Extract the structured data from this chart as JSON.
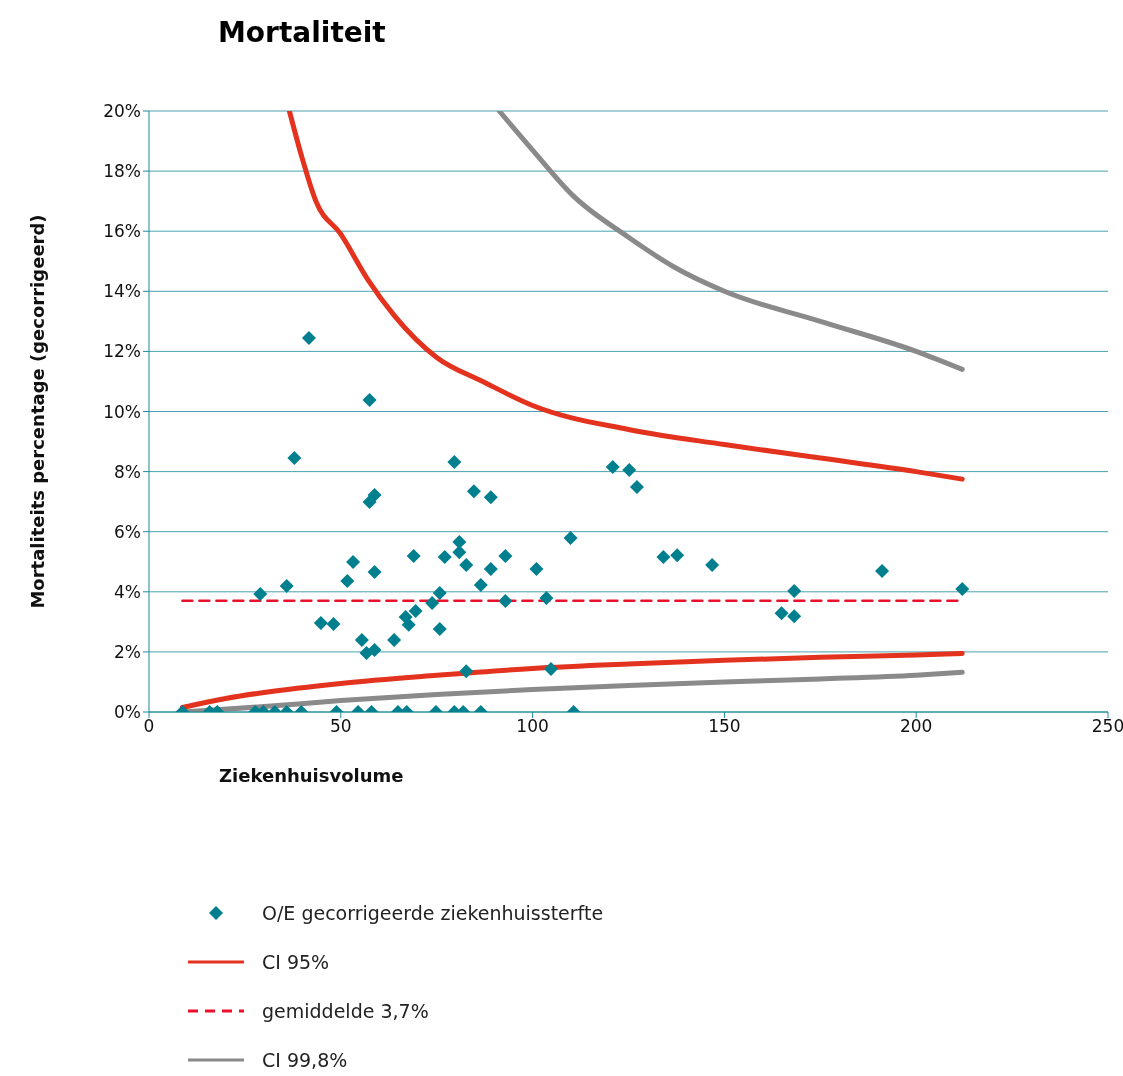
{
  "chart_data": {
    "type": "scatter",
    "title": "Mortaliteit",
    "xlabel": "Ziekenhuisvolume",
    "ylabel": "Mortaliteits percentage (gecorrigeerd)",
    "xlim": [
      0,
      250
    ],
    "xticks": [
      0,
      50,
      100,
      150,
      200,
      250
    ],
    "ylim": [
      0,
      20
    ],
    "yticks": [
      {
        "value": 0,
        "label": "0%"
      },
      {
        "value": 2,
        "label": "2%"
      },
      {
        "value": 4,
        "label": "4%"
      },
      {
        "value": 6,
        "label": "6%"
      },
      {
        "value": 8,
        "label": "8%"
      },
      {
        "value": 10,
        "label": "10%"
      },
      {
        "value": 12,
        "label": "12%"
      },
      {
        "value": 14,
        "label": "14%"
      },
      {
        "value": 16,
        "label": "16%"
      },
      {
        "value": 18,
        "label": "18%"
      },
      {
        "value": 20,
        "label": "20%"
      }
    ],
    "grid": "y",
    "legend": "bottom",
    "series": [
      {
        "name": "O/E gecorrigeerde ziekenhuissterfte",
        "color": "#00808f",
        "marker": "diamond",
        "x": [
          8.7,
          15.8,
          17.8,
          27.7,
          29.8,
          32.8,
          35.9,
          39.7,
          29,
          35.9,
          37.9,
          41.7,
          44.8,
          48.1,
          48.9,
          51.7,
          53.2,
          54.5,
          55.5,
          56.7,
          57.5,
          57.5,
          58,
          58.8,
          58.8,
          58.8,
          63.9,
          64.9,
          66.9,
          67.2,
          67.7,
          69.5,
          69,
          73.8,
          74.8,
          75.8,
          75.8,
          77.1,
          79.6,
          79.6,
          80.9,
          80.9,
          81.9,
          82.7,
          82.7,
          84.7,
          86.5,
          86.5,
          89.1,
          89.1,
          92.9,
          92.9,
          101,
          103.6,
          104.8,
          109.9,
          110.7,
          120.9,
          125.2,
          127.2,
          134.1,
          137.7,
          146.8,
          164.9,
          168.2,
          168.2,
          191.1,
          212
        ],
        "values": [
          0,
          0,
          0,
          0,
          0,
          0,
          0,
          0,
          3.93,
          4.19,
          8.45,
          12.45,
          2.96,
          2.93,
          0,
          4.36,
          4.99,
          0,
          2.4,
          1.96,
          10.38,
          6.99,
          0,
          7.22,
          4.66,
          2.06,
          2.4,
          0,
          3.16,
          0,
          2.9,
          3.36,
          5.19,
          3.63,
          0,
          3.96,
          2.76,
          5.16,
          8.32,
          0,
          5.66,
          5.32,
          0,
          4.89,
          1.36,
          7.35,
          4.23,
          0,
          7.15,
          4.76,
          5.19,
          3.69,
          4.76,
          3.79,
          1.43,
          5.79,
          0,
          8.15,
          8.05,
          7.49,
          5.16,
          5.22,
          4.89,
          3.29,
          3.19,
          4.03,
          4.69,
          4.09
        ]
      },
      {
        "type": "line",
        "name": "CI 95%",
        "color": "#e3321e",
        "line_style": "solid",
        "x": [
          36.6,
          40,
          43.5,
          50,
          57,
          63.9,
          75,
          87,
          100,
          125,
          150,
          175,
          200,
          212
        ],
        "values": [
          20,
          18.4,
          17,
          15.9,
          14.4,
          13.2,
          11.8,
          11,
          10.2,
          9.4,
          8.9,
          8.45,
          8,
          7.75
        ]
      },
      {
        "type": "line",
        "color": "#e3321e",
        "line_style": "solid",
        "x": [
          8.7,
          20,
          30,
          50,
          75,
          100,
          125,
          150,
          175,
          200,
          212
        ],
        "values": [
          0.15,
          0.45,
          0.65,
          0.95,
          1.22,
          1.45,
          1.6,
          1.72,
          1.82,
          1.9,
          1.95
        ]
      },
      {
        "type": "line",
        "name": "gemiddelde 3,7%",
        "color": "#e8102a",
        "line_style": "dashed",
        "x": [
          8.7,
          212
        ],
        "values": [
          3.7,
          3.7
        ]
      },
      {
        "type": "line",
        "name": "CI 99,8%",
        "color": "#8a8a8a",
        "line_style": "solid",
        "x": [
          8.7,
          30,
          50,
          75,
          100,
          125,
          150,
          175,
          200,
          212
        ],
        "values": [
          0,
          0.18,
          0.38,
          0.58,
          0.75,
          0.88,
          1,
          1.1,
          1.22,
          1.32
        ]
      },
      {
        "type": "line",
        "color": "#8a8a8a",
        "line_style": "solid",
        "x": [
          91.3,
          100,
          110.4,
          125,
          137,
          150,
          175,
          200,
          212
        ],
        "values": [
          20,
          18.7,
          17.2,
          15.8,
          14.8,
          14,
          13,
          12,
          11.4
        ]
      }
    ]
  }
}
